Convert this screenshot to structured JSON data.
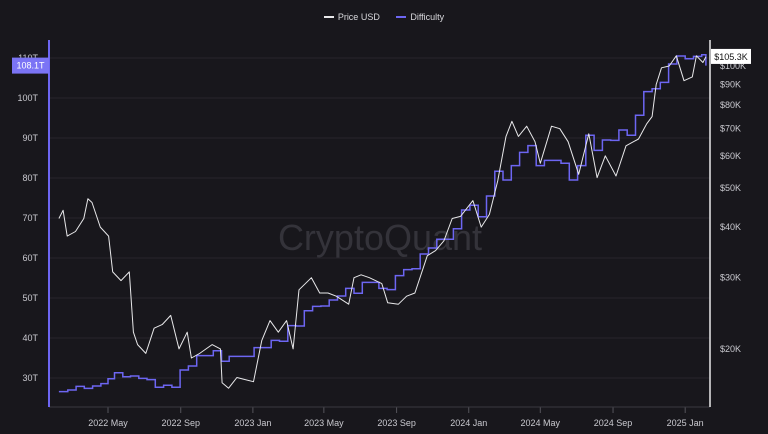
{
  "chart_data": {
    "type": "line",
    "title": "",
    "legend": {
      "placement": "top-center",
      "entries": [
        "Price USD",
        "Difficulty"
      ]
    },
    "watermark": "CryptoQuant",
    "grid": true,
    "colors": {
      "price": "#e8e8ea",
      "difficulty": "#6d66f2",
      "background": "#18171c"
    },
    "x_ticks": [
      "2022 May",
      "2022 Sep",
      "2023 Jan",
      "2023 May",
      "2023 Sep",
      "2024 Jan",
      "2024 May",
      "2024 Sep",
      "2025 Jan"
    ],
    "left_axis": {
      "label": "",
      "scale": "linear",
      "range": [
        25,
        112
      ],
      "ticks": [
        "30T",
        "40T",
        "50T",
        "60T",
        "70T",
        "80T",
        "90T",
        "100T",
        "110T"
      ],
      "current_label": "108.1T"
    },
    "right_axis": {
      "label": "",
      "scale": "log",
      "range": [
        14,
        112
      ],
      "ticks": [
        "$20K",
        "$30K",
        "$40K",
        "$50K",
        "$60K",
        "$70K",
        "$80K",
        "$90K",
        "$100K"
      ],
      "current_label": "$105.3K"
    },
    "series": [
      {
        "name": "Price USD",
        "axis": "right",
        "unit": "K USD",
        "x": [
          "2022-02-07",
          "2022-02-14",
          "2022-02-21",
          "2022-03-07",
          "2022-03-21",
          "2022-03-28",
          "2022-04-04",
          "2022-04-18",
          "2022-05-02",
          "2022-05-09",
          "2022-05-23",
          "2022-06-06",
          "2022-06-13",
          "2022-06-20",
          "2022-07-04",
          "2022-07-18",
          "2022-08-01",
          "2022-08-15",
          "2022-08-29",
          "2022-09-12",
          "2022-09-19",
          "2022-10-03",
          "2022-10-24",
          "2022-11-07",
          "2022-11-10",
          "2022-11-21",
          "2022-12-05",
          "2022-12-19",
          "2023-01-02",
          "2023-01-16",
          "2023-01-30",
          "2023-02-13",
          "2023-02-27",
          "2023-03-10",
          "2023-03-20",
          "2023-04-10",
          "2023-04-24",
          "2023-05-08",
          "2023-05-22",
          "2023-06-12",
          "2023-06-21",
          "2023-07-03",
          "2023-07-17",
          "2023-08-07",
          "2023-08-17",
          "2023-09-04",
          "2023-09-18",
          "2023-10-02",
          "2023-10-23",
          "2023-11-06",
          "2023-11-20",
          "2023-12-04",
          "2023-12-18",
          "2024-01-08",
          "2024-01-22",
          "2024-02-05",
          "2024-02-19",
          "2024-03-04",
          "2024-03-14",
          "2024-03-25",
          "2024-04-08",
          "2024-04-22",
          "2024-05-01",
          "2024-05-20",
          "2024-06-03",
          "2024-06-17",
          "2024-07-05",
          "2024-07-22",
          "2024-08-05",
          "2024-08-19",
          "2024-09-06",
          "2024-09-23",
          "2024-10-14",
          "2024-10-28",
          "2024-11-06",
          "2024-11-13",
          "2024-11-22",
          "2024-12-05",
          "2024-12-17",
          "2024-12-30",
          "2025-01-13",
          "2025-01-20",
          "2025-01-31",
          "2025-02-05"
        ],
        "values": [
          42,
          44,
          38,
          39,
          42,
          47,
          46,
          40,
          38,
          31,
          29.5,
          31,
          22,
          20.5,
          19.5,
          22.5,
          23,
          24.2,
          20,
          22,
          19,
          19.5,
          20.5,
          20,
          16.5,
          16,
          17,
          16.8,
          16.6,
          21,
          23.5,
          22,
          23.5,
          20,
          28,
          30,
          27.5,
          27.5,
          27,
          25.8,
          30,
          30.5,
          30,
          29,
          26,
          25.8,
          27,
          27.5,
          34,
          35,
          37,
          42,
          42.5,
          46.5,
          40,
          43,
          52,
          67,
          73,
          67,
          71,
          65,
          57.5,
          71,
          70,
          65,
          54,
          68,
          53,
          60,
          53.5,
          63.5,
          66,
          72,
          75,
          90,
          99,
          100,
          106,
          92,
          94,
          106,
          102,
          105.3
        ]
      },
      {
        "name": "Difficulty",
        "axis": "left",
        "unit": "T",
        "step": true,
        "x": [
          "2022-02-07",
          "2022-02-22",
          "2022-03-08",
          "2022-03-22",
          "2022-04-05",
          "2022-04-19",
          "2022-05-01",
          "2022-05-12",
          "2022-05-26",
          "2022-06-08",
          "2022-06-22",
          "2022-07-06",
          "2022-07-20",
          "2022-08-03",
          "2022-08-17",
          "2022-08-31",
          "2022-09-14",
          "2022-09-28",
          "2022-10-12",
          "2022-10-26",
          "2022-11-09",
          "2022-11-22",
          "2022-12-06",
          "2022-12-20",
          "2023-01-03",
          "2023-01-17",
          "2023-02-01",
          "2023-02-15",
          "2023-03-01",
          "2023-03-15",
          "2023-03-29",
          "2023-04-12",
          "2023-04-26",
          "2023-05-10",
          "2023-05-24",
          "2023-06-07",
          "2023-06-21",
          "2023-07-05",
          "2023-07-19",
          "2023-08-02",
          "2023-08-16",
          "2023-08-30",
          "2023-09-13",
          "2023-09-27",
          "2023-10-11",
          "2023-10-25",
          "2023-11-08",
          "2023-11-22",
          "2023-12-06",
          "2023-12-20",
          "2024-01-03",
          "2024-01-17",
          "2024-01-31",
          "2024-02-14",
          "2024-02-28",
          "2024-03-13",
          "2024-03-27",
          "2024-04-10",
          "2024-04-24",
          "2024-05-08",
          "2024-05-22",
          "2024-06-05",
          "2024-06-19",
          "2024-07-03",
          "2024-07-17",
          "2024-07-31",
          "2024-08-14",
          "2024-08-28",
          "2024-09-11",
          "2024-09-25",
          "2024-10-09",
          "2024-10-23",
          "2024-11-06",
          "2024-11-20",
          "2024-12-04",
          "2024-12-18",
          "2025-01-01",
          "2025-01-15",
          "2025-01-29",
          "2025-02-05"
        ],
        "values": [
          26.6,
          27.0,
          27.9,
          27.4,
          28.0,
          28.6,
          29.8,
          31.3,
          30.3,
          30.5,
          29.9,
          29.6,
          27.7,
          28.2,
          27.7,
          32.0,
          33.0,
          35.6,
          35.6,
          36.8,
          34.2,
          35.4,
          35.4,
          35.4,
          37.6,
          37.6,
          39.4,
          39.2,
          43.1,
          43.0,
          46.8,
          47.9,
          48.0,
          49.5,
          50.5,
          52.4,
          51.2,
          53.9,
          53.9,
          52.4,
          52.1,
          55.6,
          57.1,
          57.3,
          61.0,
          62.5,
          64.7,
          64.7,
          67.3,
          72.0,
          73.2,
          70.3,
          75.5,
          81.7,
          79.5,
          83.1,
          86.4,
          88.1,
          83.1,
          84.4,
          84.4,
          83.7,
          79.5,
          83.1,
          90.7,
          86.9,
          89.5,
          89.4,
          92.0,
          90.7,
          95.7,
          101.6,
          102.3,
          103.9,
          108.5,
          110.5,
          109.8,
          110.4,
          110.8,
          108.1
        ]
      }
    ]
  }
}
